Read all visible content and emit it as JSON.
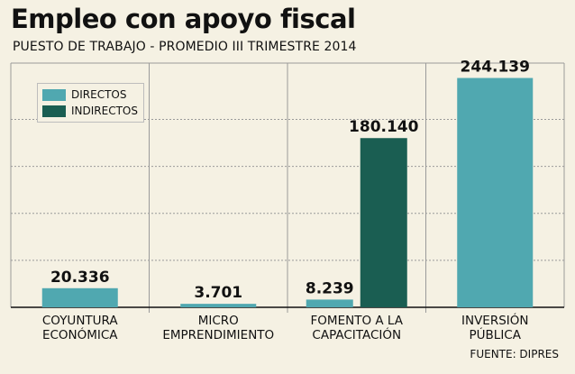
{
  "title": "Empleo con apoyo fiscal",
  "subtitle": "PUESTO DE TRABAJO - PROMEDIO III TRIMESTRE 2014",
  "source": "FUENTE: DIPRES",
  "chart_data": {
    "type": "bar",
    "categories": [
      [
        "COYUNTURA",
        "ECONÓMICA"
      ],
      [
        "MICRO",
        "EMPRENDIMIENTO"
      ],
      [
        "FOMENTO A LA",
        "CAPACITACIÓN"
      ],
      [
        "INVERSIÓN",
        "PÚBLICA"
      ]
    ],
    "series": [
      {
        "name": "DIRECTOS",
        "color": "#50a8b0",
        "values": [
          20336,
          3701,
          8239,
          244139
        ],
        "labels": [
          "20.336",
          "3.701",
          "8.239",
          "244.139"
        ]
      },
      {
        "name": "INDIRECTOS",
        "color": "#1a5e52",
        "values": [
          null,
          null,
          180140,
          null
        ],
        "labels": [
          null,
          null,
          "180.140",
          null
        ]
      }
    ],
    "ylim": [
      0,
      260000
    ],
    "grid": true,
    "legend": "top-left"
  }
}
